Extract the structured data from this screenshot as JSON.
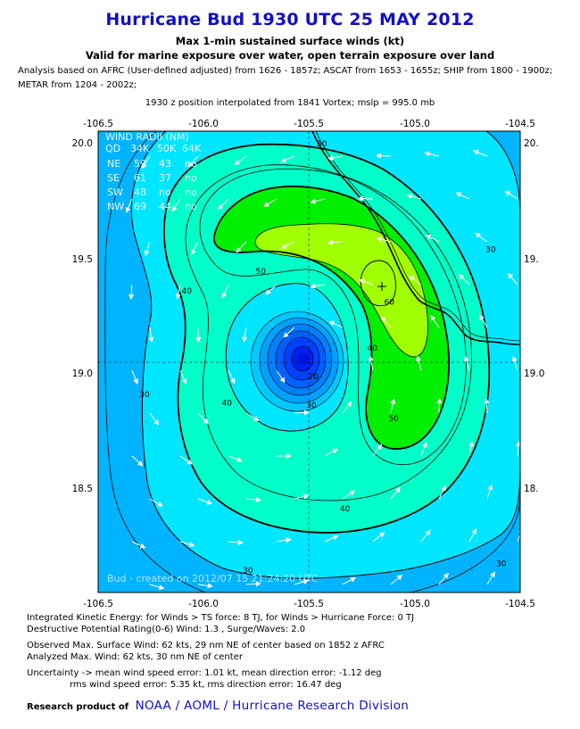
{
  "header": {
    "title": "Hurricane Bud 1930 UTC 25 MAY 2012",
    "subtitle1": "Max 1-min sustained surface winds (kt)",
    "subtitle2": "Valid for marine exposure over water, open terrain exposure over land",
    "analysis1": "Analysis based on AFRC (User-defined adjusted) from 1626 - 1857z; ASCAT from 1653 - 1655z; SHIP from 1800 - 1900z;",
    "analysis2": "METAR from 1204 - 2002z;",
    "position_note": "1930 z position interpolated from 1841 Vortex; mslp = 995.0 mb"
  },
  "chart_data": {
    "type": "contour",
    "variable": "Max 1-min sustained surface winds (kt)",
    "xlim": [
      -106.5,
      -104.5
    ],
    "ylim": [
      18.0,
      20.1
    ],
    "x_ticks": [
      "-106.5",
      "-106.0",
      "-105.5",
      "-105.0",
      "-104.5"
    ],
    "y_ticks_left": [
      "20.0",
      "19.5",
      "19.0",
      "18.5"
    ],
    "y_ticks_right": [
      "20.",
      "19.",
      "19.0",
      "18."
    ],
    "center": {
      "lon": -105.5,
      "lat": 19.05
    },
    "max_wind_location": {
      "lon": -105.12,
      "lat": 19.38
    },
    "contour_levels": [
      30,
      40,
      50,
      60
    ],
    "contour_labels": [
      {
        "text": "50",
        "lon": -105.44,
        "lat": 20.03
      },
      {
        "text": "30",
        "lon": -104.64,
        "lat": 19.55
      },
      {
        "text": "50",
        "lon": -105.73,
        "lat": 19.45
      },
      {
        "text": "60",
        "lon": -105.12,
        "lat": 19.31
      },
      {
        "text": "40",
        "lon": -106.08,
        "lat": 19.36
      },
      {
        "text": "40",
        "lon": -105.2,
        "lat": 19.1
      },
      {
        "text": "40",
        "lon": -105.89,
        "lat": 18.85
      },
      {
        "text": "20",
        "lon": -105.48,
        "lat": 18.97
      },
      {
        "text": "30",
        "lon": -105.49,
        "lat": 18.84
      },
      {
        "text": "30",
        "lon": -106.28,
        "lat": 18.89
      },
      {
        "text": "50",
        "lon": -105.1,
        "lat": 18.78
      },
      {
        "text": "40",
        "lon": -105.33,
        "lat": 18.37
      },
      {
        "text": "30",
        "lon": -104.59,
        "lat": 18.12
      },
      {
        "text": "30",
        "lon": -105.79,
        "lat": 18.09
      }
    ],
    "wind_radii": {
      "header": "WIND RADII (NM)",
      "columns": [
        "QD",
        "34K",
        "50K",
        "64K"
      ],
      "rows": [
        [
          "NE",
          "59",
          "43",
          "no"
        ],
        [
          "SE",
          "61",
          "37",
          "no"
        ],
        [
          "SW",
          "48",
          "no",
          "no"
        ],
        [
          "NW",
          "69",
          "44",
          "no"
        ]
      ]
    },
    "watermark": "Bud - created on 2012/07 15 21:24:20 UTC",
    "colors": {
      "c_lt30": "#00b4ff",
      "c_30_40": "#00e6ff",
      "c_40_50": "#00ffc8",
      "c_50_60": "#00f000",
      "c_gt60": "#a0ff00",
      "core_dark": "#0014e0",
      "coast": "#000000"
    }
  },
  "footer": {
    "ike": "Integrated Kinetic Energy: for Winds > TS force: 8 TJ, for Winds > Hurricane Force: 0 TJ",
    "dpr": "Destructive Potential Rating(0-6)  Wind: 1.3 , Surge/Waves: 2.0",
    "obs_max": "Observed Max. Surface Wind: 62 kts, 29 nm NE of center based on 1852 z AFRC",
    "analyzed_max": "Analyzed Max. Wind: 62 kts, 30 nm  NE of center",
    "uncertainty1": "Uncertainty -> mean wind speed error: 1.01 kt, mean direction error:  -1.12 deg",
    "uncertainty2": "rms wind speed error: 5.35 kt, rms direction error: 16.47 deg",
    "credit_prefix": "Research product of",
    "credit_link": "NOAA  /  AOML  /  Hurricane Research Division"
  }
}
